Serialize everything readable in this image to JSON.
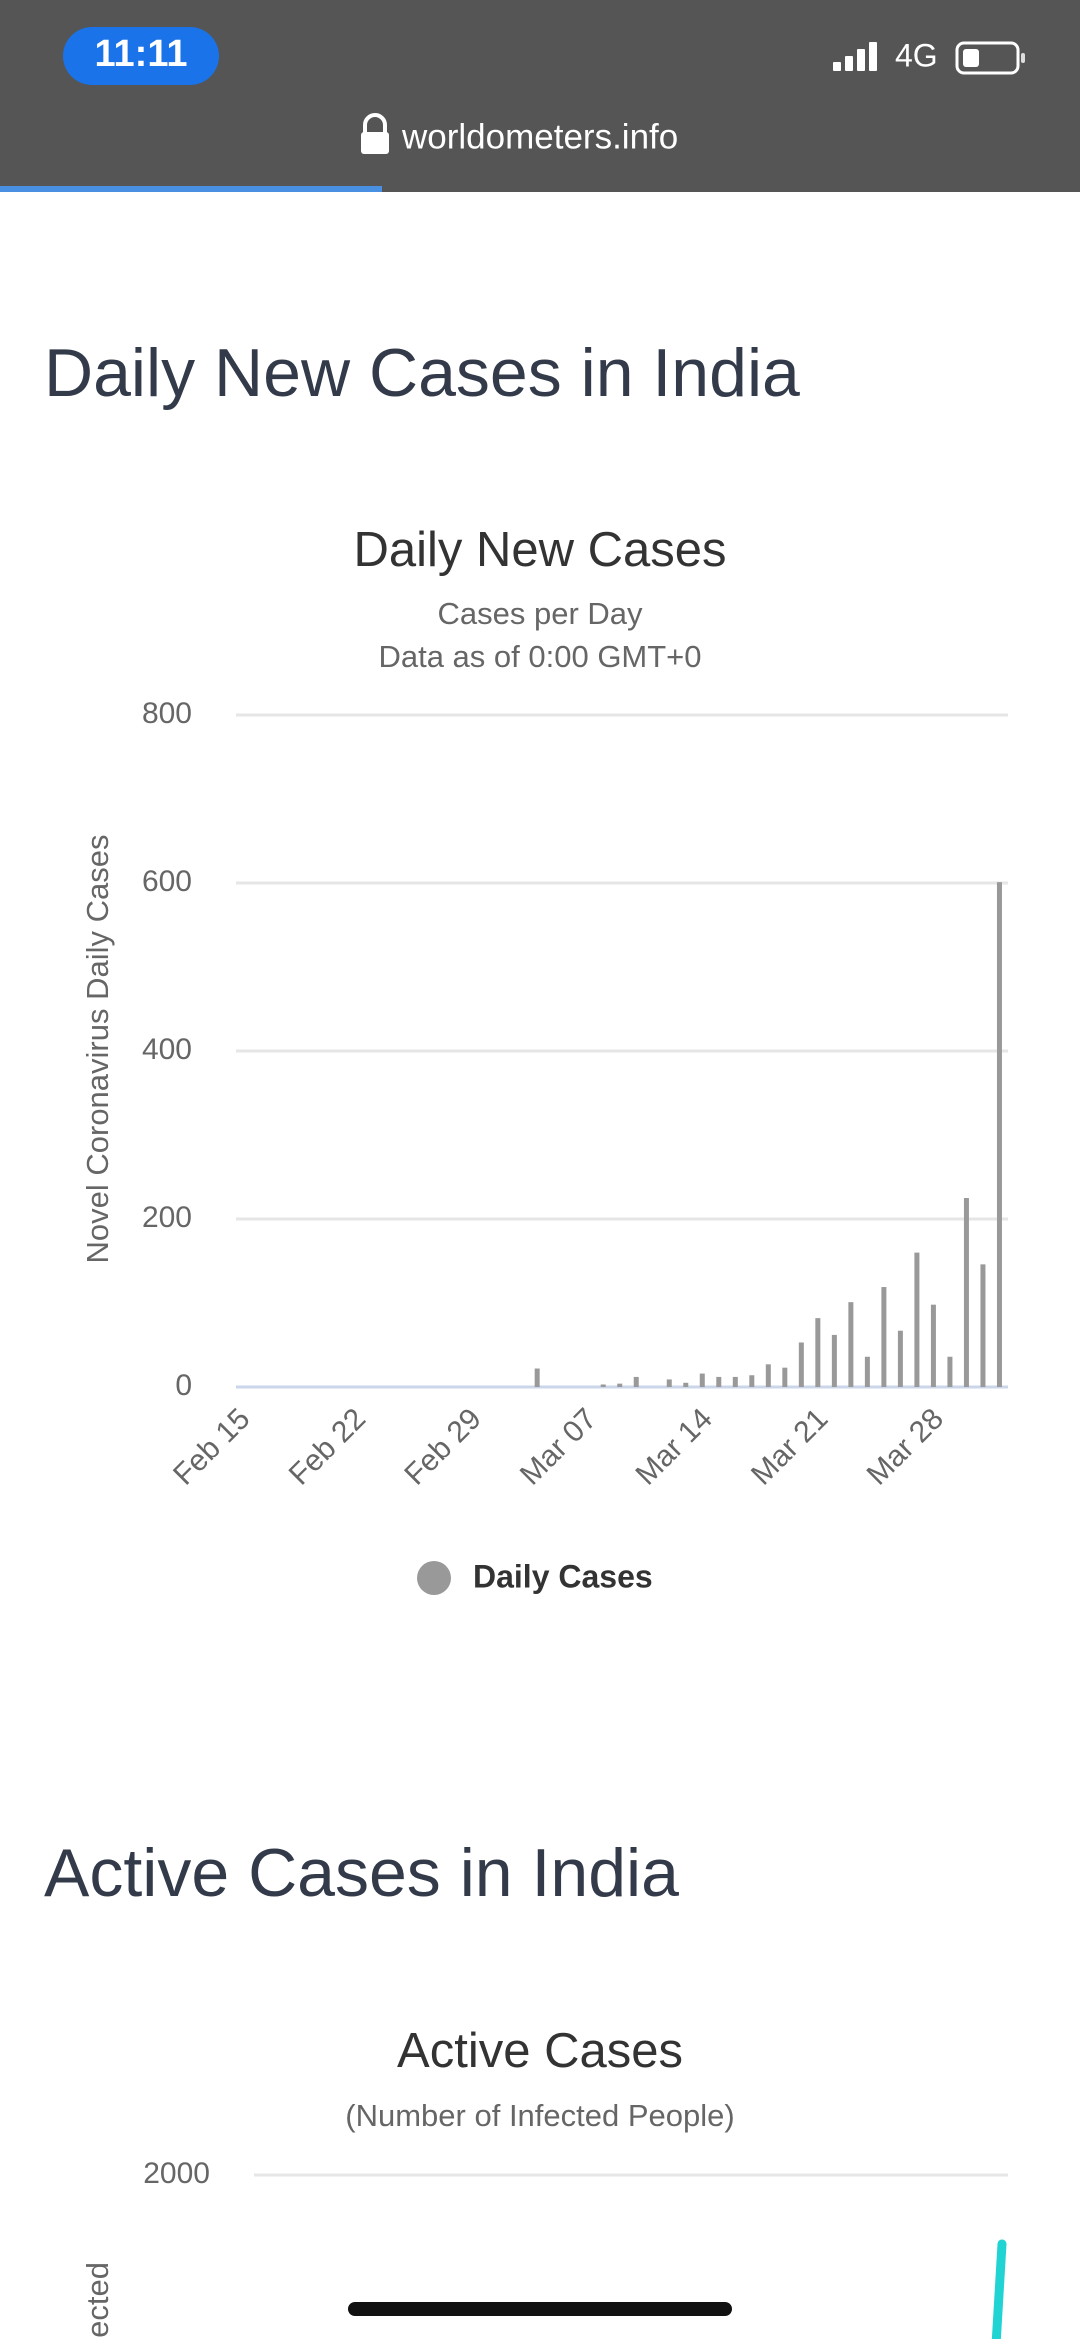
{
  "status_bar": {
    "time": "11:11",
    "network": "4G"
  },
  "browser": {
    "url": "worldometers.info"
  },
  "sections": [
    {
      "heading": "Daily New Cases in India"
    },
    {
      "heading": "Active Cases in India"
    }
  ],
  "chart_data": [
    {
      "type": "bar",
      "title": "Daily New Cases",
      "subtitle": [
        "Cases per Day",
        "Data as of 0:00 GMT+0"
      ],
      "y_label": "Novel Coronavirus Daily Cases",
      "categories": [
        "Feb 15",
        null,
        null,
        null,
        null,
        null,
        null,
        "Feb 22",
        null,
        null,
        null,
        null,
        null,
        null,
        "Feb 29",
        null,
        null,
        null,
        null,
        null,
        null,
        "Mar 07",
        null,
        null,
        null,
        null,
        null,
        null,
        "Mar 14",
        null,
        null,
        null,
        null,
        null,
        null,
        "Mar 21",
        null,
        null,
        null,
        null,
        null,
        null,
        "Mar 28",
        null,
        null,
        null,
        null
      ],
      "series": [
        {
          "name": "Daily Cases",
          "color": "#999999",
          "values": [
            0,
            0,
            0,
            0,
            0,
            0,
            0,
            0,
            0,
            0,
            0,
            0,
            0,
            0,
            0,
            0,
            0,
            0,
            22,
            0,
            0,
            0,
            3,
            4,
            12,
            0,
            9,
            5,
            16,
            12,
            12,
            14,
            27,
            23,
            53,
            82,
            62,
            101,
            36,
            119,
            67,
            160,
            98,
            36,
            225,
            146,
            601
          ]
        }
      ],
      "ylim": [
        0,
        800
      ],
      "yticks": [
        0,
        200,
        400,
        600,
        800
      ],
      "grid": true
    },
    {
      "type": "line",
      "title": "Active Cases",
      "subtitle": [
        "(Number of Infected People)"
      ],
      "y_label": "ected",
      "yticks": [
        2000
      ],
      "grid": true
    }
  ]
}
